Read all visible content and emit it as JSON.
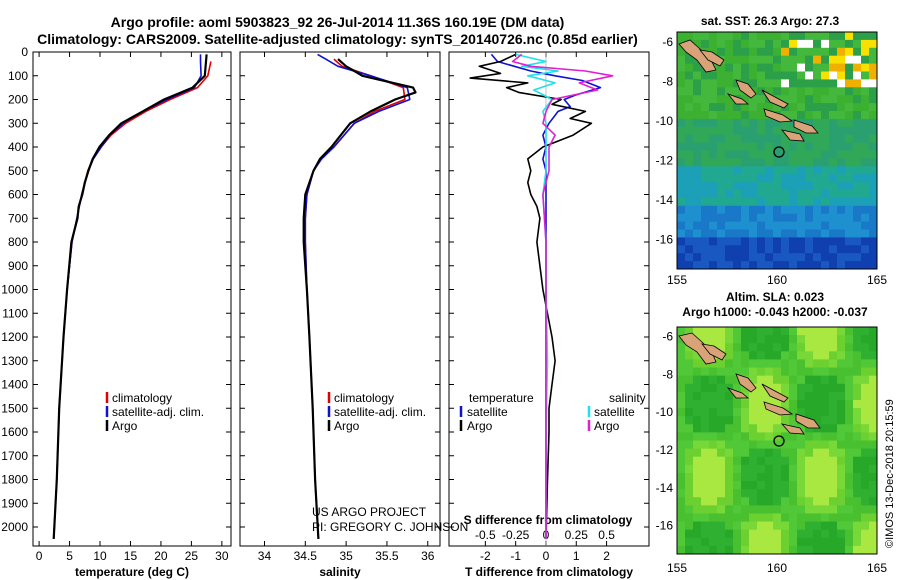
{
  "title_line1": "Argo profile: aoml 5903823_92 26-Jul-2014 11.36S 160.19E (DM data)",
  "title_line2": "Climatology: CARS2009. Satellite-adjusted climatology: synTS_20140726.nc (0.85d earlier)",
  "credit_line1": "US ARGO PROJECT",
  "credit_line2": "PI: GREGORY C. JOHNSON",
  "watermark": "©IMOS 13-Dec-2018 20:15:59",
  "colors": {
    "climatology": "#e00000",
    "satellite": "#1010d0",
    "argo": "#000000",
    "sal_satellite": "#20e0e8",
    "sal_argo": "#e020d0",
    "sst_marker": "#000000"
  },
  "chart_data": [
    {
      "type": "line",
      "name": "temperature-profile",
      "xlabel": "temperature (deg C)",
      "xlim": [
        -1,
        31.5
      ],
      "ylim": [
        0,
        2080
      ],
      "y_inverted": true,
      "xticks": [
        "0",
        "5",
        "10",
        "15",
        "20",
        "25",
        "30"
      ],
      "xtick_values": [
        0,
        5,
        10,
        15,
        20,
        25,
        30
      ],
      "yticks": [
        "0",
        "100",
        "200",
        "300",
        "400",
        "500",
        "600",
        "700",
        "800",
        "900",
        "1000",
        "1100",
        "1200",
        "1300",
        "1400",
        "1500",
        "1600",
        "1700",
        "1800",
        "1900",
        "2000"
      ],
      "ytick_values": [
        0,
        100,
        200,
        300,
        400,
        500,
        600,
        700,
        800,
        900,
        1000,
        1100,
        1200,
        1300,
        1400,
        1500,
        1600,
        1700,
        1800,
        1900,
        2000
      ],
      "legend": [
        "climatology",
        "satellite-adj. clim.",
        "Argo"
      ],
      "series": [
        {
          "name": "climatology",
          "depth": [
            40,
            100,
            150,
            200,
            250,
            300,
            350,
            400,
            450,
            500,
            600,
            700,
            800,
            1000,
            1200,
            1500,
            1800,
            2050
          ],
          "values": [
            28.2,
            27.7,
            26.0,
            21.5,
            17.5,
            14.2,
            11.8,
            10.2,
            8.8,
            8.0,
            7.0,
            6.2,
            5.4,
            4.6,
            4.0,
            3.3,
            2.9,
            2.4
          ]
        },
        {
          "name": "satellite-adj. clim.",
          "depth": [
            10,
            40,
            100,
            150,
            200,
            250,
            300,
            350,
            400,
            450,
            500,
            600,
            700,
            800,
            1000,
            1200,
            1500,
            1800,
            2050
          ],
          "values": [
            26.5,
            26.5,
            26.6,
            25.5,
            21.0,
            17.0,
            13.8,
            11.6,
            10.2,
            8.9,
            8.1,
            7.0,
            6.2,
            5.4,
            4.6,
            4.0,
            3.3,
            2.9,
            2.4
          ]
        },
        {
          "name": "Argo",
          "depth": [
            10,
            40,
            100,
            150,
            200,
            250,
            300,
            350,
            400,
            450,
            500,
            550,
            600,
            650,
            700,
            800,
            1000,
            1200,
            1500,
            1800,
            2050
          ],
          "values": [
            27.5,
            27.4,
            27.2,
            25.2,
            20.5,
            17.0,
            13.5,
            11.5,
            9.9,
            8.8,
            8.1,
            7.5,
            7.1,
            6.5,
            6.3,
            5.3,
            4.6,
            4.0,
            3.3,
            2.9,
            2.4
          ]
        }
      ]
    },
    {
      "type": "line",
      "name": "salinity-profile",
      "xlabel": "salinity",
      "xlim": [
        33.7,
        36.15
      ],
      "ylim": [
        0,
        2080
      ],
      "y_inverted": true,
      "xticks": [
        "34",
        "34.5",
        "35",
        "35.5",
        "36"
      ],
      "xtick_values": [
        34,
        34.5,
        35,
        35.5,
        36
      ],
      "legend": [
        "climatology",
        "satellite-adj. clim.",
        "Argo"
      ],
      "series": [
        {
          "name": "climatology",
          "depth": [
            30,
            60,
            100,
            150,
            200,
            250,
            300,
            400,
            450,
            500,
            600,
            700,
            800,
            1000,
            1200,
            1500,
            1800,
            2050
          ],
          "values": [
            34.85,
            34.95,
            35.3,
            35.7,
            35.72,
            35.35,
            35.1,
            34.85,
            34.68,
            34.6,
            34.52,
            34.5,
            34.5,
            34.52,
            34.55,
            34.59,
            34.62,
            34.66
          ]
        },
        {
          "name": "satellite-adj. clim.",
          "depth": [
            10,
            30,
            60,
            100,
            150,
            200,
            250,
            300,
            400,
            450,
            500,
            600,
            700,
            800,
            1000,
            1200,
            1500,
            1800,
            2050
          ],
          "values": [
            34.65,
            34.75,
            34.9,
            35.3,
            35.75,
            35.78,
            35.4,
            35.1,
            34.85,
            34.7,
            34.6,
            34.52,
            34.5,
            34.5,
            34.52,
            34.55,
            34.59,
            34.62,
            34.66
          ]
        },
        {
          "name": "Argo",
          "depth": [
            30,
            60,
            80,
            100,
            150,
            170,
            200,
            250,
            300,
            400,
            450,
            500,
            600,
            700,
            800,
            1000,
            1200,
            1500,
            1800,
            2050
          ],
          "values": [
            34.9,
            35.0,
            35.1,
            35.2,
            35.82,
            35.85,
            35.6,
            35.3,
            35.05,
            34.82,
            34.68,
            34.6,
            34.5,
            34.48,
            34.48,
            34.52,
            34.55,
            34.59,
            34.62,
            34.66
          ]
        }
      ]
    },
    {
      "type": "line",
      "name": "difference-profile",
      "xlabel": "T difference from climatology",
      "top_axis_label": "S difference from climatology",
      "xlim": [
        -3.2,
        3.4
      ],
      "ylim": [
        0,
        2080
      ],
      "y_inverted": true,
      "xticks": [
        "-2",
        "-1",
        "0",
        "1",
        "2"
      ],
      "xtick_values": [
        -2,
        -1,
        0,
        1,
        2
      ],
      "s_ticks": [
        "-0.5",
        "-0.25",
        "0",
        "0.25",
        "0.5"
      ],
      "s_tick_positions_t_units": [
        -2,
        -1,
        0,
        1,
        2
      ],
      "legend_temperature": {
        "header": "temperature",
        "items": [
          "satellite",
          "Argo"
        ]
      },
      "legend_salinity": {
        "header": "salinity",
        "items": [
          "satellite",
          "Argo"
        ]
      },
      "series": [
        {
          "name": "temperature satellite",
          "depth": [
            10,
            40,
            80,
            100,
            120,
            150,
            180,
            200,
            230,
            250,
            300,
            350,
            400,
            450,
            500,
            600,
            800,
            1000,
            1200,
            1500,
            1800,
            2050
          ],
          "values": [
            -1.8,
            -1.6,
            -0.5,
            0.3,
            1.2,
            1.8,
            1.0,
            0.6,
            0.8,
            0.4,
            0.1,
            -0.1,
            0.0,
            -0.1,
            0.0,
            0.0,
            0.0,
            0.0,
            0.0,
            0.0,
            0.0,
            0.0
          ]
        },
        {
          "name": "temperature Argo",
          "depth": [
            10,
            40,
            60,
            90,
            110,
            130,
            150,
            170,
            200,
            220,
            250,
            280,
            300,
            350,
            400,
            450,
            500,
            550,
            600,
            650,
            700,
            800,
            1000,
            1200,
            1300,
            1400,
            1500,
            1600,
            1800,
            2050
          ],
          "values": [
            -1.0,
            -1.5,
            -2.2,
            -1.5,
            -2.5,
            -0.6,
            -1.3,
            -0.9,
            0.5,
            0.2,
            1.3,
            0.8,
            1.5,
            0.9,
            -0.1,
            -0.6,
            -0.5,
            -0.6,
            -0.5,
            -0.3,
            -0.2,
            -0.3,
            -0.1,
            0.2,
            0.3,
            0.2,
            0.1,
            0.1,
            0.05,
            0.0
          ]
        },
        {
          "name": "salinity satellite",
          "depth": [
            10,
            40,
            60,
            80,
            100,
            130,
            160,
            200,
            250,
            300,
            400,
            500,
            600,
            800,
            1000,
            1300,
            1600,
            2050
          ],
          "values": [
            -1.0,
            0.0,
            -0.8,
            0.4,
            -0.6,
            0.3,
            -0.4,
            0.2,
            -0.1,
            0.0,
            0.0,
            0.0,
            -0.1,
            0.0,
            0.0,
            0.05,
            0.0,
            0.0
          ]
        },
        {
          "name": "salinity Argo",
          "depth": [
            10,
            40,
            60,
            80,
            100,
            130,
            160,
            200,
            250,
            300,
            350,
            400,
            500,
            600,
            800,
            1000,
            1300,
            1600,
            2050
          ],
          "values": [
            -0.8,
            -1.1,
            -0.5,
            1.3,
            2.2,
            1.1,
            1.7,
            0.2,
            0.0,
            -0.1,
            0.3,
            0.1,
            0.1,
            -0.1,
            0.0,
            0.0,
            0.0,
            0.0,
            0.0
          ]
        }
      ]
    },
    {
      "type": "heatmap",
      "name": "sst-map",
      "title": "sat. SST: 26.3 Argo: 27.3",
      "xlim": [
        155,
        165
      ],
      "ylim": [
        -17.5,
        -5.5
      ],
      "xticks": [
        "155",
        "160",
        "165"
      ],
      "xtick_values": [
        155,
        160,
        165
      ],
      "yticks": [
        "-6",
        "-8",
        "-10",
        "-12",
        "-14",
        "-16"
      ],
      "ytick_values": [
        -6,
        -8,
        -10,
        -12,
        -14,
        -16
      ],
      "argo_position": [
        160.19,
        -11.36
      ]
    },
    {
      "type": "heatmap",
      "name": "sla-map",
      "title_line1": "Altim. SLA: 0.023",
      "title_line2": "Argo h1000: -0.043 h2000: -0.037",
      "xlim": [
        155,
        165
      ],
      "ylim": [
        -17.5,
        -5.5
      ],
      "xticks": [
        "155",
        "160",
        "165"
      ],
      "xtick_values": [
        155,
        160,
        165
      ],
      "yticks": [
        "-6",
        "-8",
        "-10",
        "-12",
        "-14",
        "-16"
      ],
      "ytick_values": [
        -6,
        -8,
        -10,
        -12,
        -14,
        -16
      ],
      "argo_position": [
        160.19,
        -11.36
      ]
    }
  ]
}
